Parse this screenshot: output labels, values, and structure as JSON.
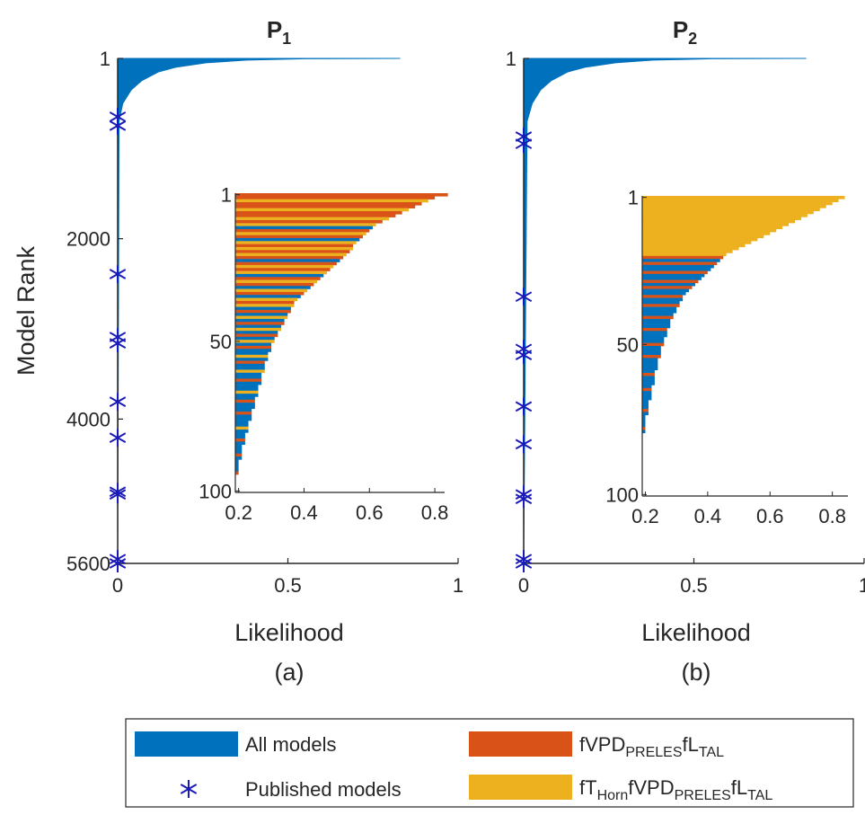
{
  "chart_data": [
    {
      "type": "bar",
      "title": "P",
      "title_sub": "1",
      "ylabel": "Model Rank",
      "xlabel": "Likelihood",
      "caption": "(a)",
      "xlim": [
        0,
        1
      ],
      "xticks": [
        0,
        0.5,
        1
      ],
      "ylim": [
        1,
        5600
      ],
      "yticks": [
        1,
        2000,
        4000,
        5600
      ],
      "curve": {
        "ranks": [
          1,
          5,
          20,
          50,
          100,
          150,
          250,
          350,
          500,
          700,
          5600
        ],
        "values": [
          0.83,
          0.55,
          0.38,
          0.26,
          0.17,
          0.12,
          0.07,
          0.04,
          0.015,
          0.004,
          0
        ]
      },
      "published": {
        "ranks": [
          648,
          747,
          2392,
          3090,
          3160,
          3808,
          4207,
          4805,
          4835,
          5552,
          5600
        ],
        "values": [
          0,
          0,
          0,
          0,
          0,
          0,
          0,
          0,
          0,
          0,
          0
        ]
      },
      "inset": {
        "xlim": [
          0.19,
          0.83
        ],
        "xticks": [
          0.2,
          0.4,
          0.6,
          0.8
        ],
        "ylim": [
          0.5,
          100.5
        ],
        "yticks": [
          1,
          50,
          100
        ],
        "values": [
          0.84,
          0.8,
          0.78,
          0.76,
          0.74,
          0.72,
          0.7,
          0.68,
          0.66,
          0.64,
          0.62,
          0.61,
          0.6,
          0.59,
          0.58,
          0.57,
          0.56,
          0.55,
          0.55,
          0.54,
          0.53,
          0.52,
          0.51,
          0.5,
          0.49,
          0.48,
          0.47,
          0.46,
          0.45,
          0.44,
          0.43,
          0.42,
          0.41,
          0.4,
          0.39,
          0.38,
          0.37,
          0.37,
          0.36,
          0.36,
          0.35,
          0.35,
          0.34,
          0.34,
          0.33,
          0.33,
          0.32,
          0.32,
          0.31,
          0.31,
          0.3,
          0.3,
          0.3,
          0.29,
          0.29,
          0.29,
          0.28,
          0.28,
          0.28,
          0.28,
          0.27,
          0.27,
          0.27,
          0.27,
          0.26,
          0.26,
          0.26,
          0.26,
          0.25,
          0.25,
          0.25,
          0.25,
          0.24,
          0.24,
          0.24,
          0.24,
          0.23,
          0.23,
          0.23,
          0.23,
          0.22,
          0.22,
          0.22,
          0.22,
          0.21,
          0.21,
          0.21,
          0.21,
          0.21,
          0.2,
          0.2,
          0.2,
          0.2,
          0.2,
          0.19,
          0.19,
          0.19,
          0.19,
          0.19,
          0.19
        ],
        "groups": [
          2,
          2,
          3,
          2,
          2,
          3,
          2,
          2,
          3,
          2,
          3,
          0,
          2,
          3,
          2,
          0,
          3,
          2,
          3,
          2,
          3,
          2,
          0,
          2,
          3,
          2,
          3,
          0,
          2,
          3,
          2,
          0,
          3,
          2,
          0,
          3,
          2,
          3,
          0,
          2,
          0,
          3,
          0,
          2,
          0,
          3,
          0,
          2,
          0,
          3,
          0,
          2,
          0,
          0,
          3,
          0,
          2,
          0,
          0,
          3,
          0,
          0,
          2,
          0,
          0,
          0,
          3,
          0,
          0,
          2,
          0,
          0,
          0,
          2,
          0,
          0,
          0,
          0,
          3,
          0,
          0,
          0,
          2,
          0,
          0,
          0,
          0,
          2,
          0,
          0,
          0,
          0,
          0,
          2,
          0,
          0,
          0,
          0,
          0,
          0
        ]
      }
    },
    {
      "type": "bar",
      "title": "P",
      "title_sub": "2",
      "xlabel": "Likelihood",
      "caption": "(b)",
      "xlim": [
        0,
        1
      ],
      "xticks": [
        0,
        0.5,
        1
      ],
      "ylim": [
        1,
        5600
      ],
      "yticks": [
        1
      ],
      "curve": {
        "ranks": [
          1,
          5,
          20,
          50,
          100,
          150,
          250,
          350,
          500,
          700,
          5600
        ],
        "values": [
          0.83,
          0.55,
          0.38,
          0.27,
          0.18,
          0.13,
          0.08,
          0.05,
          0.025,
          0.01,
          0
        ]
      },
      "published": {
        "ranks": [
          868,
          948,
          2643,
          3222,
          3290,
          3860,
          4279,
          4835,
          4885,
          5552,
          5600
        ],
        "values": [
          0,
          0,
          0,
          0,
          0,
          0,
          0,
          0,
          0,
          0,
          0
        ]
      },
      "inset": {
        "xlim": [
          0.19,
          0.85
        ],
        "xticks": [
          0.2,
          0.4,
          0.6,
          0.8
        ],
        "ylim": [
          0.5,
          100.5
        ],
        "yticks": [
          1,
          50,
          100
        ],
        "values": [
          0.84,
          0.82,
          0.8,
          0.78,
          0.76,
          0.74,
          0.72,
          0.7,
          0.68,
          0.66,
          0.64,
          0.62,
          0.6,
          0.58,
          0.56,
          0.54,
          0.52,
          0.5,
          0.48,
          0.46,
          0.45,
          0.44,
          0.43,
          0.42,
          0.41,
          0.4,
          0.39,
          0.38,
          0.37,
          0.36,
          0.35,
          0.34,
          0.33,
          0.32,
          0.32,
          0.31,
          0.31,
          0.3,
          0.3,
          0.29,
          0.29,
          0.28,
          0.28,
          0.28,
          0.27,
          0.27,
          0.27,
          0.26,
          0.26,
          0.26,
          0.25,
          0.25,
          0.25,
          0.25,
          0.24,
          0.24,
          0.24,
          0.24,
          0.23,
          0.23,
          0.23,
          0.23,
          0.23,
          0.22,
          0.22,
          0.22,
          0.22,
          0.22,
          0.21,
          0.21,
          0.21,
          0.21,
          0.21,
          0.2,
          0.2,
          0.2,
          0.2,
          0.2,
          0.2,
          0.19,
          0.19,
          0.19,
          0.19,
          0.19,
          0.19,
          0.18,
          0.18,
          0.18,
          0.18,
          0.18,
          0.18,
          0.18,
          0.17,
          0.17,
          0.17,
          0.17,
          0.17,
          0.17,
          0.17,
          0.17
        ],
        "groups": [
          3,
          3,
          3,
          3,
          3,
          3,
          3,
          3,
          3,
          3,
          3,
          3,
          3,
          3,
          3,
          3,
          3,
          3,
          3,
          3,
          2,
          0,
          2,
          0,
          0,
          2,
          0,
          0,
          2,
          0,
          2,
          0,
          0,
          2,
          0,
          0,
          2,
          0,
          0,
          0,
          2,
          0,
          0,
          0,
          2,
          0,
          0,
          0,
          0,
          2,
          0,
          0,
          0,
          2,
          0,
          0,
          0,
          0,
          0,
          2,
          0,
          0,
          0,
          0,
          2,
          0,
          0,
          0,
          0,
          0,
          0,
          2,
          0,
          0,
          0,
          0,
          0,
          2,
          0,
          0,
          0,
          0,
          0,
          0,
          2,
          0,
          0,
          0,
          0,
          0,
          2,
          0,
          0,
          0,
          0,
          0,
          0,
          2,
          0,
          0
        ]
      }
    }
  ],
  "legend": {
    "series": [
      {
        "name": [
          "All models"
        ],
        "color": "#0072BD",
        "marker": "bar"
      },
      {
        "name": [
          "Published models"
        ],
        "color": "#1a1ab8",
        "marker": "star"
      },
      {
        "name": [
          "fVPD",
          "PRELES",
          "fL",
          "TAL"
        ],
        "color": "#D95319",
        "marker": "bar"
      },
      {
        "name": [
          "fT",
          "Horn",
          "fVPD",
          "PRELES",
          "fL",
          "TAL"
        ],
        "color": "#EDB120",
        "marker": "bar"
      }
    ]
  }
}
